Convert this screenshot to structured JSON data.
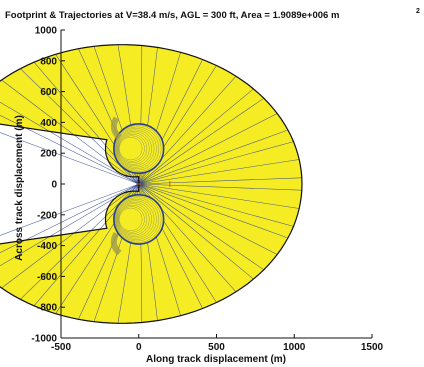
{
  "chart_data": {
    "type": "area",
    "title": "Footprint & Trajectories at V=38.4 m/s, AGL = 300 ft, Area = 1.9089e+006 m",
    "title_superscript": "2",
    "xlabel": "Along track displacement (m)",
    "ylabel": "Across track displacement (m)",
    "xlim": [
      -500,
      1500
    ],
    "ylim": [
      -1000,
      1000
    ],
    "xticks": [
      "-500",
      "0",
      "500",
      "1000",
      "1500"
    ],
    "yticks": [
      "-1000",
      "-800",
      "-600",
      "-400",
      "-200",
      "0",
      "200",
      "400",
      "600",
      "800",
      "1000"
    ],
    "grid": false,
    "legend": "none",
    "origin": [
      0,
      0
    ],
    "outer_footprint": {
      "description_points": [
        [
          0,
          80
        ],
        [
          -20,
          330
        ],
        [
          -110,
          640
        ],
        [
          100,
          850
        ],
        [
          420,
          900
        ],
        [
          800,
          660
        ],
        [
          1050,
          0
        ],
        [
          800,
          -660
        ],
        [
          420,
          -900
        ],
        [
          100,
          -850
        ],
        [
          -110,
          -640
        ],
        [
          -20,
          -330
        ],
        [
          0,
          -80
        ]
      ],
      "center": [
        -110,
        0
      ],
      "radius": 1160,
      "notch_tip_x": -40
    },
    "inner_lobes": [
      {
        "center": [
          0,
          230
        ],
        "radius": 160
      },
      {
        "center": [
          0,
          -230
        ],
        "radius": 160
      }
    ],
    "trajectory_count": 46,
    "colors": {
      "fill": "#f6ec23",
      "inner_fill": "#f6ec23",
      "trajectory": "#2a3f8f",
      "outline": "#111111",
      "axes": "#111111",
      "origin_marker": "#e0531f",
      "notch_fill": "#9c9a4e"
    }
  }
}
